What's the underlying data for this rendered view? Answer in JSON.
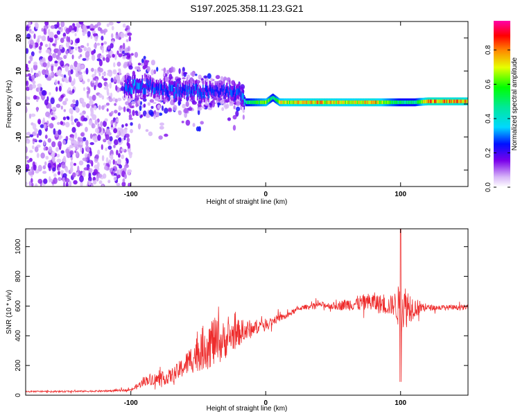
{
  "title": "S197.2025.358.11.23.G21",
  "chart_data": [
    {
      "type": "heatmap",
      "name": "spectrogram",
      "title": "S197.2025.358.11.23.G21",
      "xlabel": "Height of straight line (km)",
      "ylabel": "Frequency (Hz)",
      "xlim": [
        -178,
        150
      ],
      "ylim": [
        -25,
        25
      ],
      "xticks": [
        -100,
        0,
        100
      ],
      "xtick_labels": [
        "-100",
        "0",
        "100"
      ],
      "yticks": [
        -20,
        -10,
        0,
        10,
        20
      ],
      "ytick_labels": [
        "-20",
        "-10",
        "0",
        "10",
        "20"
      ],
      "colorbar": {
        "label": "Normalized spectral amplitude",
        "range": [
          0,
          0.97
        ],
        "ticks": [
          0,
          0.2,
          0.4,
          0.6,
          0.8
        ],
        "tick_labels": [
          "0.0",
          "0.2",
          "0.4",
          "0.6",
          "0.8"
        ]
      },
      "ridge": {
        "x": [
          -105,
          -95,
          -85,
          -75,
          -65,
          -55,
          -45,
          -35,
          -25,
          -18,
          -15,
          0,
          5,
          10,
          20,
          40,
          60,
          80,
          100,
          110,
          120,
          150
        ],
        "frequency": [
          5,
          5.5,
          5,
          4.5,
          4,
          4,
          3.5,
          4,
          3.5,
          3,
          0.5,
          0.5,
          2,
          0.5,
          0.5,
          0.5,
          0.5,
          0.5,
          0.5,
          0.5,
          0.8,
          0.8
        ],
        "amplitude": [
          0.3,
          0.35,
          0.3,
          0.3,
          0.3,
          0.3,
          0.3,
          0.25,
          0.3,
          0.3,
          0.5,
          0.7,
          0.5,
          0.7,
          0.75,
          0.8,
          0.75,
          0.8,
          0.5,
          0.5,
          0.85,
          0.8
        ]
      }
    },
    {
      "type": "line",
      "name": "snr",
      "xlabel": "Height of straight line (km)",
      "ylabel": "SNR (10 * v/v)",
      "xlim": [
        -178,
        150
      ],
      "ylim": [
        0,
        1120
      ],
      "xticks": [
        -100,
        0,
        100
      ],
      "xtick_labels": [
        "-100",
        "0",
        "100"
      ],
      "yticks": [
        0,
        200,
        400,
        600,
        800,
        1000
      ],
      "ytick_labels": [
        "0",
        "200",
        "400",
        "600",
        "800",
        "1000"
      ],
      "color": "#ee2c2c",
      "series": [
        {
          "name": "SNR",
          "x": [
            -178,
            -150,
            -120,
            -100,
            -95,
            -90,
            -85,
            -80,
            -75,
            -70,
            -65,
            -60,
            -55,
            -50,
            -45,
            -40,
            -35,
            -30,
            -25,
            -20,
            -15,
            -10,
            -5,
            0,
            5,
            10,
            15,
            20,
            25,
            30,
            40,
            50,
            60,
            70,
            80,
            90,
            95,
            100,
            105,
            110,
            120,
            130,
            140,
            150
          ],
          "y": [
            25,
            25,
            28,
            35,
            60,
            95,
            110,
            105,
            115,
            130,
            160,
            200,
            245,
            290,
            330,
            360,
            350,
            370,
            400,
            420,
            430,
            450,
            470,
            480,
            500,
            520,
            530,
            560,
            585,
            595,
            610,
            600,
            610,
            620,
            625,
            600,
            610,
            590,
            600,
            590,
            590,
            590,
            590,
            590
          ],
          "amplitude": [
            10,
            10,
            12,
            15,
            40,
            60,
            80,
            85,
            90,
            100,
            120,
            150,
            200,
            260,
            320,
            360,
            300,
            250,
            220,
            180,
            150,
            120,
            80,
            70,
            60,
            50,
            40,
            35,
            30,
            30,
            35,
            50,
            80,
            110,
            140,
            120,
            150,
            350,
            280,
            140,
            40,
            35,
            35,
            35
          ]
        }
      ]
    }
  ]
}
